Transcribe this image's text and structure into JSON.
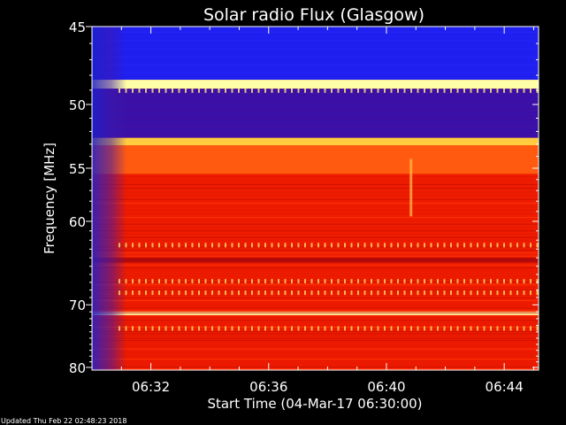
{
  "chart_data": {
    "type": "heatmap",
    "title": "Solar radio Flux (Glasgow)",
    "xlabel": "Start Time (04-Mar-17 06:30:00)",
    "ylabel": "Frequency [MHz]",
    "xlim": [
      "06:30:00",
      "06:45:10"
    ],
    "ylim": [
      45,
      80.5
    ],
    "y_scale": "reciprocal",
    "x_ticks": [
      "06:32",
      "06:36",
      "06:40",
      "06:44"
    ],
    "y_ticks": [
      45,
      50,
      55,
      60,
      70,
      80
    ],
    "y_tick_labels": [
      "45",
      "50",
      "55",
      "60",
      "70",
      "80"
    ],
    "colormap": [
      "#000000",
      "#1a10c8",
      "#1f1ff0",
      "#7a0088",
      "#c81000",
      "#ff2a00",
      "#ff6a00",
      "#ffd000",
      "#ffffb0"
    ],
    "bands": [
      {
        "from": 45.0,
        "to": 48.3,
        "level": "low-blue"
      },
      {
        "from": 48.3,
        "to": 48.9,
        "level": "very-high"
      },
      {
        "from": 48.9,
        "to": 52.5,
        "level": "low-purple"
      },
      {
        "from": 52.5,
        "to": 53.1,
        "level": "high"
      },
      {
        "from": 53.1,
        "to": 55.5,
        "level": "elevated"
      },
      {
        "from": 55.5,
        "to": 64.0,
        "level": "medium"
      },
      {
        "from": 64.0,
        "to": 64.6,
        "level": "dark-band"
      },
      {
        "from": 64.6,
        "to": 71.0,
        "level": "medium"
      },
      {
        "from": 71.0,
        "to": 71.5,
        "level": "very-high"
      },
      {
        "from": 71.5,
        "to": 80.5,
        "level": "medium"
      }
    ],
    "low_signal_time_window": [
      "06:30:00",
      "06:31:00"
    ],
    "interference_column_time": "06:40:50",
    "grid": false,
    "legend": "none"
  },
  "footer": {
    "updated": "Updated Thu Feb 22 02:48:23 2018"
  }
}
